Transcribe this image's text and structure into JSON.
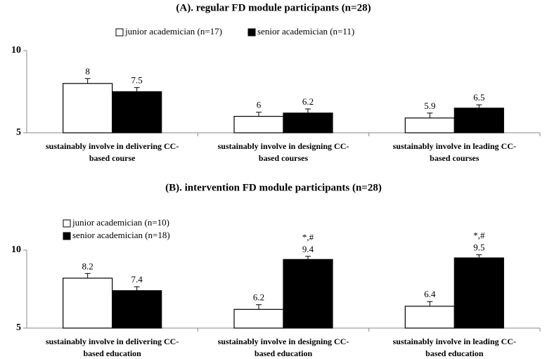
{
  "chart_data": [
    {
      "type": "bar",
      "title": "(A). regular FD module participants (n=28)",
      "categories": [
        [
          "sustainably involve in delivering CC-",
          "based course"
        ],
        [
          "sustainably involve in designing CC-",
          "based courses"
        ],
        [
          "sustainably involve in leading CC-",
          "based courses"
        ]
      ],
      "series": [
        {
          "name": "junior academician (n=17)",
          "color": "#ffffff",
          "values": [
            8,
            6,
            5.9
          ],
          "errors": [
            0.3,
            0.25,
            0.3
          ]
        },
        {
          "name": "senior academician (n=11)",
          "color": "#000000",
          "values": [
            7.5,
            6.2,
            6.5
          ],
          "errors": [
            0.25,
            0.25,
            0.2
          ]
        }
      ],
      "ylim": [
        5,
        10
      ],
      "yticks": [
        5,
        10
      ],
      "grid": false,
      "legend": "top"
    },
    {
      "type": "bar",
      "title": "(B). intervention FD module participants (n=28)",
      "categories": [
        [
          "sustainably involve in delivering CC-",
          "based education"
        ],
        [
          "sustainably involve in designing CC-",
          "based education"
        ],
        [
          "sustainably involve in leading CC-",
          "based education"
        ]
      ],
      "series": [
        {
          "name": "junior academician (n=10)",
          "color": "#ffffff",
          "values": [
            8.2,
            6.2,
            6.4
          ],
          "errors": [
            0.3,
            0.3,
            0.3
          ]
        },
        {
          "name": "senior academician (n=18)",
          "color": "#000000",
          "values": [
            7.4,
            9.4,
            9.5
          ],
          "errors": [
            0.25,
            0.2,
            0.2
          ],
          "annotations": [
            null,
            "*,#",
            "*,#"
          ]
        }
      ],
      "ylim": [
        5,
        10
      ],
      "yticks": [
        5,
        10
      ],
      "grid": false,
      "legend": "upper left"
    }
  ]
}
